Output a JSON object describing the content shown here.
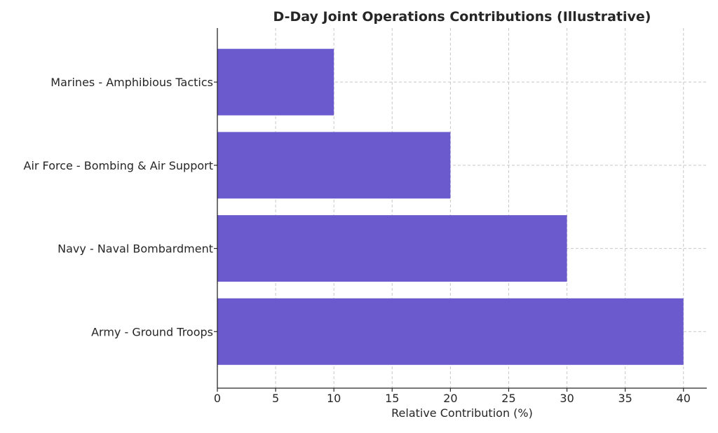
{
  "chart_data": {
    "type": "bar",
    "orientation": "horizontal",
    "title": "D-Day Joint Operations Contributions (Illustrative)",
    "xlabel": "Relative Contribution (%)",
    "ylabel": "",
    "categories": [
      "Army - Ground Troops",
      "Navy - Naval Bombardment",
      "Air Force - Bombing & Air Support",
      "Marines - Amphibious Tactics"
    ],
    "values": [
      40,
      30,
      20,
      10
    ],
    "xlim": [
      0,
      42
    ],
    "xticks": [
      0,
      5,
      10,
      15,
      20,
      25,
      30,
      35,
      40
    ],
    "grid": true,
    "bar_color": "#6a5acd"
  }
}
